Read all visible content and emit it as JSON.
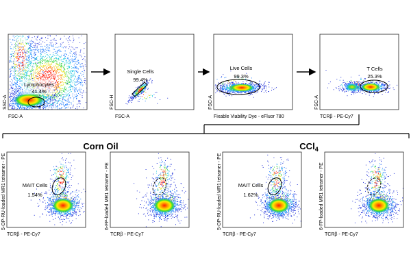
{
  "top_row": [
    {
      "xlabel": "FSC-A",
      "ylabel": "SSC-A",
      "gate_label": "Lymphocytes",
      "gate_pct": "41.4%"
    },
    {
      "xlabel": "FSC-A",
      "ylabel": "FSC-H",
      "gate_label": "Single Cells",
      "gate_pct": "99.4%"
    },
    {
      "xlabel": "Fixable Viability Dye - eFluor 780",
      "ylabel": "FSC-A",
      "gate_label": "Live Cells",
      "gate_pct": "99.3%"
    },
    {
      "xlabel": "TCRβ - PE-Cy7",
      "ylabel": "FSC-A",
      "gate_label": "T Cells",
      "gate_pct": "25.3%"
    }
  ],
  "groups": [
    {
      "title": "Corn Oil"
    },
    {
      "title": "CCl",
      "title_sub": "4"
    }
  ],
  "bottom_row": [
    {
      "xlabel": "TCRβ - PE-Cy7",
      "ylabel": "5-OP-RU-loaded MR1 tetramer - PE",
      "gate_label": "MAIT Cells",
      "gate_pct": "1.54%"
    },
    {
      "xlabel": "TCRβ - PE-Cy7",
      "ylabel": "6-FP-loaded MR1 tetramer - PE",
      "gate_label": "",
      "gate_pct": ""
    },
    {
      "xlabel": "TCRβ - PE-Cy7",
      "ylabel": "5-OP-RU-loaded MR1 tetramer - PE",
      "gate_label": "MAIT Cells",
      "gate_pct": "1.62%"
    },
    {
      "xlabel": "TCRβ - PE-Cy7",
      "ylabel": "6-FP-loaded MR1 tetramer - PE",
      "gate_label": "",
      "gate_pct": ""
    }
  ],
  "chart_data": [
    {
      "type": "scatter",
      "panel": "Lymphocytes gate",
      "xlabel": "FSC-A",
      "ylabel": "SSC-A",
      "gates": [
        {
          "name": "Lymphocytes",
          "percent": 41.4
        }
      ]
    },
    {
      "type": "scatter",
      "panel": "Single cells gate",
      "xlabel": "FSC-A",
      "ylabel": "FSC-H",
      "gates": [
        {
          "name": "Single Cells",
          "percent": 99.4
        }
      ]
    },
    {
      "type": "scatter",
      "panel": "Live cells gate",
      "xlabel": "Fixable Viability Dye - eFluor 780",
      "ylabel": "FSC-A",
      "gates": [
        {
          "name": "Live Cells",
          "percent": 99.3
        }
      ]
    },
    {
      "type": "scatter",
      "panel": "T cells gate",
      "xlabel": "TCRβ - PE-Cy7",
      "ylabel": "FSC-A",
      "gates": [
        {
          "name": "T Cells",
          "percent": 25.3
        }
      ]
    },
    {
      "type": "scatter",
      "group": "Corn Oil",
      "xlabel": "TCRβ - PE-Cy7",
      "ylabel": "5-OP-RU-loaded MR1 tetramer - PE",
      "gates": [
        {
          "name": "MAIT Cells",
          "percent": 1.54
        }
      ]
    },
    {
      "type": "scatter",
      "group": "Corn Oil",
      "xlabel": "TCRβ - PE-Cy7",
      "ylabel": "6-FP-loaded MR1 tetramer - PE",
      "gates": []
    },
    {
      "type": "scatter",
      "group": "CCl4",
      "xlabel": "TCRβ - PE-Cy7",
      "ylabel": "5-OP-RU-loaded MR1 tetramer - PE",
      "gates": [
        {
          "name": "MAIT Cells",
          "percent": 1.62
        }
      ]
    },
    {
      "type": "scatter",
      "group": "CCl4",
      "xlabel": "TCRβ - PE-Cy7",
      "ylabel": "6-FP-loaded MR1 tetramer - PE",
      "gates": []
    }
  ]
}
